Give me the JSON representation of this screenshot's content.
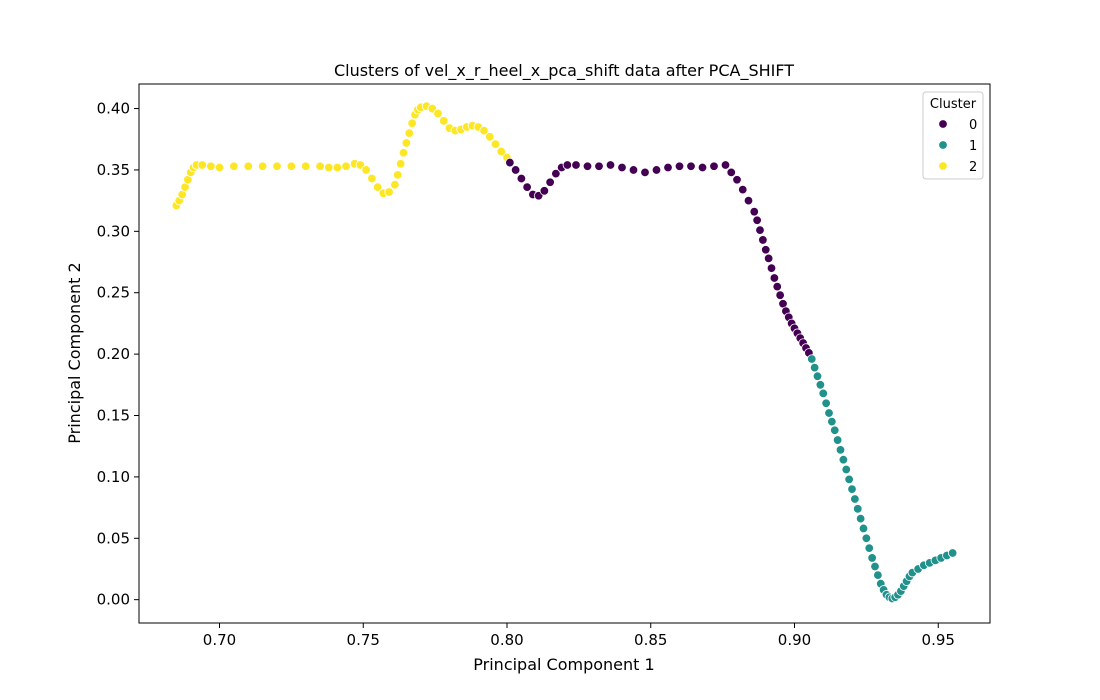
{
  "chart_data": {
    "type": "scatter",
    "title": "Clusters of vel_x_r_heel_x_pca_shift data after PCA_SHIFT",
    "xlabel": "Principal Component 1",
    "ylabel": "Principal Component 2",
    "xlim": [
      0.672,
      0.968
    ],
    "ylim": [
      -0.019,
      0.42
    ],
    "xticks": [
      0.7,
      0.75,
      0.8,
      0.85,
      0.9,
      0.95
    ],
    "xtick_labels": [
      "0.70",
      "0.75",
      "0.80",
      "0.85",
      "0.90",
      "0.95"
    ],
    "yticks": [
      0.0,
      0.05,
      0.1,
      0.15,
      0.2,
      0.25,
      0.3,
      0.35,
      0.4
    ],
    "ytick_labels": [
      "0.00",
      "0.05",
      "0.10",
      "0.15",
      "0.20",
      "0.25",
      "0.30",
      "0.35",
      "0.40"
    ],
    "grid": false,
    "legend": {
      "title": "Cluster",
      "placement": "top-right",
      "entries": [
        {
          "label": "0",
          "color": "#440154"
        },
        {
          "label": "1",
          "color": "#21918c"
        },
        {
          "label": "2",
          "color": "#fde725"
        }
      ]
    },
    "series": [
      {
        "name": "2",
        "color": "#fde725",
        "x": [
          0.685,
          0.686,
          0.687,
          0.688,
          0.689,
          0.69,
          0.691,
          0.692,
          0.694,
          0.697,
          0.7,
          0.705,
          0.71,
          0.715,
          0.72,
          0.725,
          0.73,
          0.735,
          0.738,
          0.741,
          0.744,
          0.747,
          0.749,
          0.751,
          0.753,
          0.755,
          0.757,
          0.759,
          0.761,
          0.762,
          0.763,
          0.764,
          0.765,
          0.766,
          0.767,
          0.768,
          0.769,
          0.77,
          0.772,
          0.774,
          0.776,
          0.778,
          0.78,
          0.782,
          0.784,
          0.786,
          0.788,
          0.79,
          0.792,
          0.794,
          0.796,
          0.798,
          0.8
        ],
        "y": [
          0.321,
          0.325,
          0.33,
          0.336,
          0.342,
          0.348,
          0.352,
          0.354,
          0.354,
          0.353,
          0.352,
          0.353,
          0.353,
          0.353,
          0.353,
          0.353,
          0.353,
          0.353,
          0.352,
          0.352,
          0.353,
          0.355,
          0.354,
          0.35,
          0.343,
          0.336,
          0.331,
          0.332,
          0.338,
          0.346,
          0.355,
          0.364,
          0.372,
          0.38,
          0.388,
          0.395,
          0.399,
          0.401,
          0.402,
          0.4,
          0.396,
          0.39,
          0.384,
          0.382,
          0.383,
          0.385,
          0.386,
          0.385,
          0.382,
          0.377,
          0.371,
          0.365,
          0.36
        ]
      },
      {
        "name": "0",
        "color": "#440154",
        "x": [
          0.801,
          0.803,
          0.805,
          0.807,
          0.809,
          0.811,
          0.813,
          0.815,
          0.817,
          0.819,
          0.821,
          0.824,
          0.828,
          0.832,
          0.836,
          0.84,
          0.844,
          0.848,
          0.852,
          0.856,
          0.86,
          0.864,
          0.868,
          0.872,
          0.876,
          0.878,
          0.88,
          0.882,
          0.884,
          0.886,
          0.887,
          0.888,
          0.889,
          0.89,
          0.891,
          0.892,
          0.893,
          0.894,
          0.895,
          0.896,
          0.897,
          0.898,
          0.899,
          0.9,
          0.901,
          0.902,
          0.903,
          0.904,
          0.905
        ],
        "y": [
          0.356,
          0.35,
          0.343,
          0.336,
          0.33,
          0.329,
          0.333,
          0.34,
          0.347,
          0.352,
          0.354,
          0.354,
          0.353,
          0.353,
          0.354,
          0.352,
          0.35,
          0.348,
          0.35,
          0.352,
          0.353,
          0.353,
          0.352,
          0.353,
          0.354,
          0.348,
          0.342,
          0.334,
          0.325,
          0.316,
          0.309,
          0.301,
          0.293,
          0.285,
          0.278,
          0.27,
          0.262,
          0.255,
          0.248,
          0.241,
          0.235,
          0.23,
          0.225,
          0.221,
          0.217,
          0.213,
          0.209,
          0.205,
          0.201
        ]
      },
      {
        "name": "1",
        "color": "#21918c",
        "x": [
          0.906,
          0.907,
          0.908,
          0.909,
          0.91,
          0.911,
          0.912,
          0.913,
          0.914,
          0.915,
          0.916,
          0.917,
          0.918,
          0.919,
          0.92,
          0.921,
          0.922,
          0.923,
          0.924,
          0.925,
          0.926,
          0.927,
          0.928,
          0.929,
          0.93,
          0.931,
          0.932,
          0.933,
          0.934,
          0.935,
          0.936,
          0.937,
          0.938,
          0.939,
          0.94,
          0.941,
          0.943,
          0.945,
          0.947,
          0.949,
          0.951,
          0.953,
          0.955
        ],
        "y": [
          0.196,
          0.189,
          0.182,
          0.175,
          0.168,
          0.16,
          0.152,
          0.145,
          0.138,
          0.13,
          0.122,
          0.114,
          0.106,
          0.098,
          0.09,
          0.082,
          0.074,
          0.066,
          0.058,
          0.05,
          0.042,
          0.034,
          0.027,
          0.02,
          0.013,
          0.008,
          0.004,
          0.002,
          0.001,
          0.002,
          0.004,
          0.007,
          0.011,
          0.015,
          0.019,
          0.022,
          0.025,
          0.028,
          0.03,
          0.032,
          0.034,
          0.036,
          0.038
        ]
      }
    ]
  }
}
